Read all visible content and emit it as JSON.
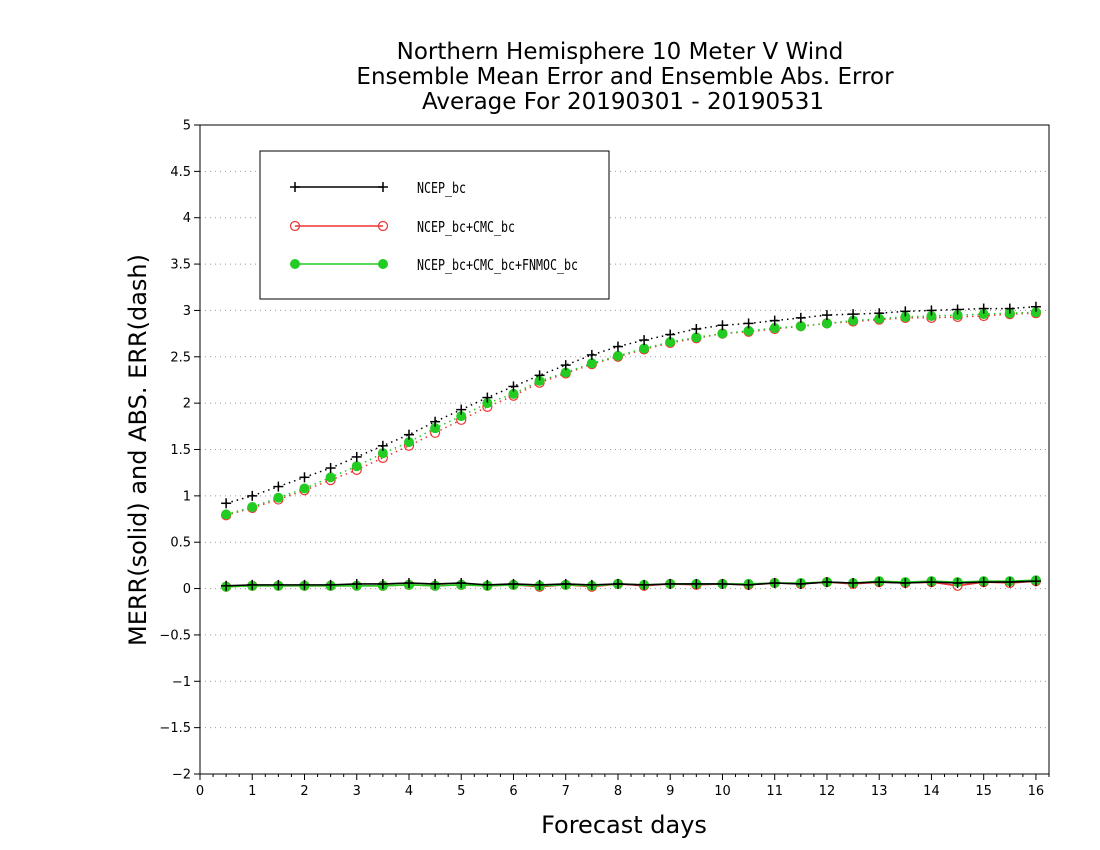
{
  "chart_data": {
    "type": "line",
    "title_lines": [
      "Northern Hemisphere 10 Meter V Wind",
      "Ensemble Mean Error and Ensemble Abs. Error",
      "Average For 20190301 - 20190531"
    ],
    "xlabel": "Forecast days",
    "ylabel": "MERR(solid) and ABS. ERR(dash)",
    "xlim": [
      0,
      16.25
    ],
    "ylim": [
      -2,
      5
    ],
    "x_ticks": [
      "0",
      "1",
      "2",
      "3",
      "4",
      "5",
      "6",
      "7",
      "8",
      "9",
      "10",
      "11",
      "12",
      "13",
      "14",
      "15",
      "16"
    ],
    "y_ticks": [
      "−2",
      "−1.5",
      "−1",
      "−0.5",
      "0",
      "0.5",
      "1",
      "1.5",
      "2",
      "2.5",
      "3",
      "3.5",
      "4",
      "4.5",
      "5"
    ],
    "grid": "horizontal dotted",
    "legend_position": "top-left",
    "x": [
      0.5,
      1,
      1.5,
      2,
      2.5,
      3,
      3.5,
      4,
      4.5,
      5,
      5.5,
      6,
      6.5,
      7,
      7.5,
      8,
      8.5,
      9,
      9.5,
      10,
      10.5,
      11,
      11.5,
      12,
      12.5,
      13,
      13.5,
      14,
      14.5,
      15,
      15.5,
      16
    ],
    "series": [
      {
        "name": "NCEP_bc",
        "color": "#000000",
        "marker": "plus",
        "mean_error": [
          0.03,
          0.04,
          0.04,
          0.04,
          0.04,
          0.05,
          0.05,
          0.06,
          0.05,
          0.06,
          0.04,
          0.05,
          0.04,
          0.05,
          0.04,
          0.05,
          0.04,
          0.05,
          0.05,
          0.05,
          0.04,
          0.06,
          0.05,
          0.07,
          0.06,
          0.07,
          0.06,
          0.07,
          0.06,
          0.07,
          0.07,
          0.08
        ],
        "abs_error": [
          0.92,
          1.0,
          1.1,
          1.2,
          1.3,
          1.42,
          1.54,
          1.66,
          1.8,
          1.93,
          2.06,
          2.18,
          2.3,
          2.41,
          2.52,
          2.61,
          2.68,
          2.74,
          2.8,
          2.84,
          2.86,
          2.89,
          2.92,
          2.95,
          2.96,
          2.97,
          2.99,
          3.0,
          3.01,
          3.02,
          3.02,
          3.04
        ]
      },
      {
        "name": "NCEP_bc+CMC_bc",
        "color": "#ee3333",
        "marker": "open-circle",
        "mean_error": [
          0.02,
          0.03,
          0.03,
          0.03,
          0.03,
          0.03,
          0.03,
          0.04,
          0.03,
          0.04,
          0.03,
          0.04,
          0.02,
          0.04,
          0.02,
          0.05,
          0.03,
          0.05,
          0.04,
          0.05,
          0.04,
          0.06,
          0.05,
          0.07,
          0.05,
          0.07,
          0.06,
          0.07,
          0.03,
          0.07,
          0.06,
          0.08
        ],
        "abs_error": [
          0.79,
          0.87,
          0.96,
          1.06,
          1.17,
          1.28,
          1.41,
          1.54,
          1.68,
          1.82,
          1.96,
          2.08,
          2.22,
          2.32,
          2.42,
          2.5,
          2.58,
          2.65,
          2.7,
          2.75,
          2.77,
          2.8,
          2.83,
          2.86,
          2.88,
          2.9,
          2.92,
          2.92,
          2.93,
          2.94,
          2.96,
          2.97
        ]
      },
      {
        "name": "NCEP_bc+CMC_bc+FNMOC_bc",
        "color": "#22cc22",
        "marker": "filled-circle",
        "mean_error": [
          0.02,
          0.03,
          0.03,
          0.03,
          0.03,
          0.03,
          0.03,
          0.04,
          0.03,
          0.04,
          0.03,
          0.04,
          0.03,
          0.04,
          0.03,
          0.05,
          0.04,
          0.05,
          0.05,
          0.05,
          0.05,
          0.06,
          0.06,
          0.07,
          0.06,
          0.08,
          0.07,
          0.08,
          0.07,
          0.08,
          0.08,
          0.09
        ],
        "abs_error": [
          0.8,
          0.88,
          0.98,
          1.08,
          1.2,
          1.32,
          1.46,
          1.58,
          1.73,
          1.86,
          2.0,
          2.1,
          2.24,
          2.33,
          2.43,
          2.51,
          2.59,
          2.66,
          2.71,
          2.75,
          2.78,
          2.81,
          2.83,
          2.86,
          2.89,
          2.91,
          2.93,
          2.94,
          2.95,
          2.96,
          2.97,
          2.98
        ]
      }
    ]
  }
}
